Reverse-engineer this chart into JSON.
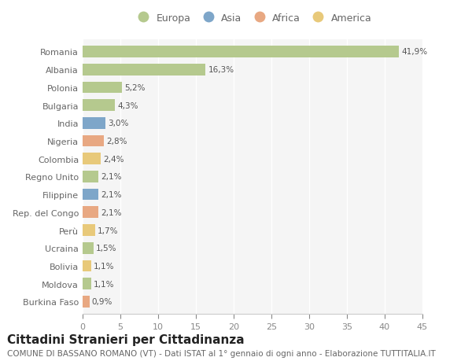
{
  "countries": [
    "Romania",
    "Albania",
    "Polonia",
    "Bulgaria",
    "India",
    "Nigeria",
    "Colombia",
    "Regno Unito",
    "Filippine",
    "Rep. del Congo",
    "Perù",
    "Ucraina",
    "Bolivia",
    "Moldova",
    "Burkina Faso"
  ],
  "values": [
    41.9,
    16.3,
    5.2,
    4.3,
    3.0,
    2.8,
    2.4,
    2.1,
    2.1,
    2.1,
    1.7,
    1.5,
    1.1,
    1.1,
    0.9
  ],
  "labels": [
    "41,9%",
    "16,3%",
    "5,2%",
    "4,3%",
    "3,0%",
    "2,8%",
    "2,4%",
    "2,1%",
    "2,1%",
    "2,1%",
    "1,7%",
    "1,5%",
    "1,1%",
    "1,1%",
    "0,9%"
  ],
  "continents": [
    "Europa",
    "Europa",
    "Europa",
    "Europa",
    "Asia",
    "Africa",
    "America",
    "Europa",
    "Asia",
    "Africa",
    "America",
    "Europa",
    "America",
    "Europa",
    "Africa"
  ],
  "continent_colors": {
    "Europa": "#b5c98e",
    "Asia": "#7ea6c9",
    "Africa": "#e8a882",
    "America": "#e8c97a"
  },
  "legend_entries": [
    "Europa",
    "Asia",
    "Africa",
    "America"
  ],
  "legend_colors": [
    "#b5c98e",
    "#7ea6c9",
    "#e8a882",
    "#e8c97a"
  ],
  "xlim": [
    0,
    45
  ],
  "xticks": [
    0,
    5,
    10,
    15,
    20,
    25,
    30,
    35,
    40,
    45
  ],
  "background_color": "#ffffff",
  "plot_bg_color": "#f5f5f5",
  "grid_color": "#ffffff",
  "title": "Cittadini Stranieri per Cittadinanza",
  "subtitle": "COMUNE DI BASSANO ROMANO (VT) - Dati ISTAT al 1° gennaio di ogni anno - Elaborazione TUTTITALIA.IT",
  "bar_height": 0.65,
  "title_fontsize": 11,
  "subtitle_fontsize": 7.5,
  "label_fontsize": 7.5,
  "tick_fontsize": 8,
  "legend_fontsize": 9
}
